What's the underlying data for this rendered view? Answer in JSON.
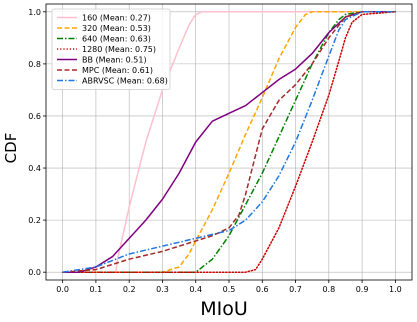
{
  "chart_data": {
    "type": "line",
    "title": "",
    "xlabel": "MIoU",
    "ylabel": "CDF",
    "xlim": [
      -0.05,
      1.05
    ],
    "ylim": [
      -0.03,
      1.03
    ],
    "x_ticks": [
      "0.0",
      "0.1",
      "0.2",
      "0.3",
      "0.4",
      "0.5",
      "0.6",
      "0.7",
      "0.8",
      "0.9",
      "1.0"
    ],
    "y_ticks": [
      "0.0",
      "0.2",
      "0.4",
      "0.6",
      "0.8",
      "1.0"
    ],
    "grid": true,
    "legend_position": "top-left",
    "series": [
      {
        "name": "160 (Mean: 0.27)",
        "color": "#ffc0cb",
        "dash": "solid",
        "x": [
          0,
          0.16,
          0.165,
          0.2,
          0.25,
          0.3,
          0.35,
          0.38,
          0.4,
          0.42,
          0.44,
          0.5,
          0.6,
          0.8,
          1.0
        ],
        "y": [
          0,
          0,
          0.05,
          0.25,
          0.5,
          0.7,
          0.86,
          0.95,
          0.99,
          1.0,
          1.0,
          1.0,
          1.0,
          1.0,
          1.0
        ]
      },
      {
        "name": "320 (Mean: 0.53)",
        "color": "#ffa500",
        "dash": "dashed",
        "x": [
          0,
          0.3,
          0.35,
          0.38,
          0.4,
          0.45,
          0.5,
          0.55,
          0.6,
          0.65,
          0.7,
          0.73,
          0.75,
          0.8,
          1.0
        ],
        "y": [
          0,
          0,
          0.02,
          0.07,
          0.12,
          0.24,
          0.38,
          0.53,
          0.67,
          0.82,
          0.94,
          0.99,
          1.0,
          1.0,
          1.0
        ]
      },
      {
        "name": "640 (Mean: 0.63)",
        "color": "#008000",
        "dash": "dashdot",
        "x": [
          0,
          0.4,
          0.45,
          0.5,
          0.55,
          0.6,
          0.65,
          0.7,
          0.75,
          0.8,
          0.83,
          0.85,
          0.9,
          1.0
        ],
        "y": [
          0,
          0,
          0.05,
          0.14,
          0.26,
          0.38,
          0.52,
          0.66,
          0.8,
          0.92,
          0.97,
          0.99,
          1.0,
          1.0
        ]
      },
      {
        "name": "1280 (Mean: 0.75)",
        "color": "#cc0000",
        "dash": "dotted",
        "x": [
          0,
          0.55,
          0.58,
          0.6,
          0.65,
          0.7,
          0.75,
          0.8,
          0.83,
          0.85,
          0.87,
          0.9,
          1.0
        ],
        "y": [
          0,
          0,
          0.01,
          0.05,
          0.17,
          0.33,
          0.5,
          0.68,
          0.81,
          0.9,
          0.96,
          0.99,
          1.0
        ]
      },
      {
        "name": "BB (Mean: 0.51)",
        "color": "#800080",
        "dash": "solid",
        "x": [
          0,
          0.05,
          0.1,
          0.15,
          0.2,
          0.25,
          0.3,
          0.35,
          0.4,
          0.45,
          0.5,
          0.55,
          0.6,
          0.65,
          0.7,
          0.75,
          0.8,
          0.85,
          0.9,
          0.95,
          1.0
        ],
        "y": [
          0,
          0,
          0.02,
          0.06,
          0.13,
          0.2,
          0.28,
          0.38,
          0.5,
          0.58,
          0.61,
          0.64,
          0.69,
          0.74,
          0.78,
          0.84,
          0.92,
          0.98,
          1.0,
          1.0,
          1.0
        ]
      },
      {
        "name": "MPC (Mean: 0.61)",
        "color": "#a52a2a",
        "dash": "dashed",
        "x": [
          0,
          0.1,
          0.2,
          0.3,
          0.4,
          0.45,
          0.5,
          0.53,
          0.55,
          0.58,
          0.6,
          0.65,
          0.7,
          0.75,
          0.8,
          0.85,
          0.9,
          1.0
        ],
        "y": [
          0,
          0.01,
          0.05,
          0.08,
          0.12,
          0.14,
          0.17,
          0.22,
          0.3,
          0.45,
          0.55,
          0.66,
          0.72,
          0.8,
          0.9,
          0.98,
          1.0,
          1.0
        ]
      },
      {
        "name": "ABRVSC (Mean: 0.68)",
        "color": "#1f77e0",
        "dash": "dashdot",
        "x": [
          0,
          0.1,
          0.2,
          0.3,
          0.4,
          0.5,
          0.55,
          0.6,
          0.65,
          0.7,
          0.75,
          0.8,
          0.83,
          0.85,
          0.9,
          1.0
        ],
        "y": [
          0,
          0.02,
          0.07,
          0.1,
          0.13,
          0.16,
          0.2,
          0.27,
          0.37,
          0.5,
          0.66,
          0.83,
          0.93,
          0.97,
          1.0,
          1.0
        ]
      }
    ]
  }
}
